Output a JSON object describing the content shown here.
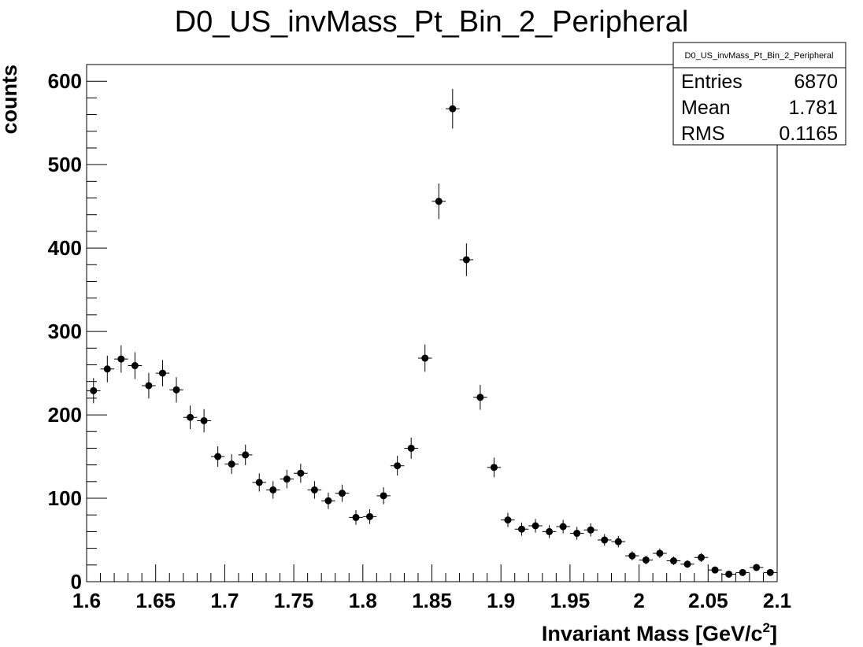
{
  "chart_data": {
    "type": "scatter",
    "title": "D0_US_invMass_Pt_Bin_2_Peripheral",
    "xlabel": "Invariant Mass [GeV/c",
    "xlabel_sup": "2",
    "xlabel_end": "]",
    "ylabel": "counts",
    "xlim": [
      1.6,
      2.1
    ],
    "ylim": [
      0,
      620
    ],
    "bin_width": 0.01,
    "x_ticks": [
      "1.6",
      "1.65",
      "1.7",
      "1.75",
      "1.8",
      "1.85",
      "1.9",
      "1.95",
      "2",
      "2.05",
      "2.1"
    ],
    "y_ticks": [
      "0",
      "100",
      "200",
      "300",
      "400",
      "500",
      "600"
    ],
    "series": [
      {
        "x": [
          1.605,
          1.615,
          1.625,
          1.635,
          1.645,
          1.655,
          1.665,
          1.675,
          1.685,
          1.695,
          1.705,
          1.715,
          1.725,
          1.735,
          1.745,
          1.755,
          1.765,
          1.775,
          1.785,
          1.795,
          1.805,
          1.815,
          1.825,
          1.835,
          1.845,
          1.855,
          1.865,
          1.875,
          1.885,
          1.895,
          1.905,
          1.915,
          1.925,
          1.935,
          1.945,
          1.955,
          1.965,
          1.975,
          1.985,
          1.995,
          2.005,
          2.015,
          2.025,
          2.035,
          2.045,
          2.055,
          2.065,
          2.075,
          2.085,
          2.095
        ],
        "y": [
          229,
          255,
          267,
          259,
          235,
          250,
          230,
          197,
          193,
          150,
          141,
          152,
          119,
          110,
          123,
          130,
          110,
          97,
          106,
          77,
          78,
          103,
          139,
          160,
          268,
          456,
          567,
          386,
          221,
          137,
          74,
          63,
          67,
          60,
          66,
          58,
          62,
          50,
          48,
          31,
          26,
          34,
          25,
          21,
          29,
          14,
          9,
          11,
          17,
          11
        ]
      }
    ]
  },
  "stats": {
    "name": "D0_US_invMass_Pt_Bin_2_Peripheral",
    "rows": [
      {
        "label": "Entries",
        "value": "6870"
      },
      {
        "label": "Mean",
        "value": "1.781"
      },
      {
        "label": "RMS",
        "value": "0.1165"
      }
    ]
  }
}
